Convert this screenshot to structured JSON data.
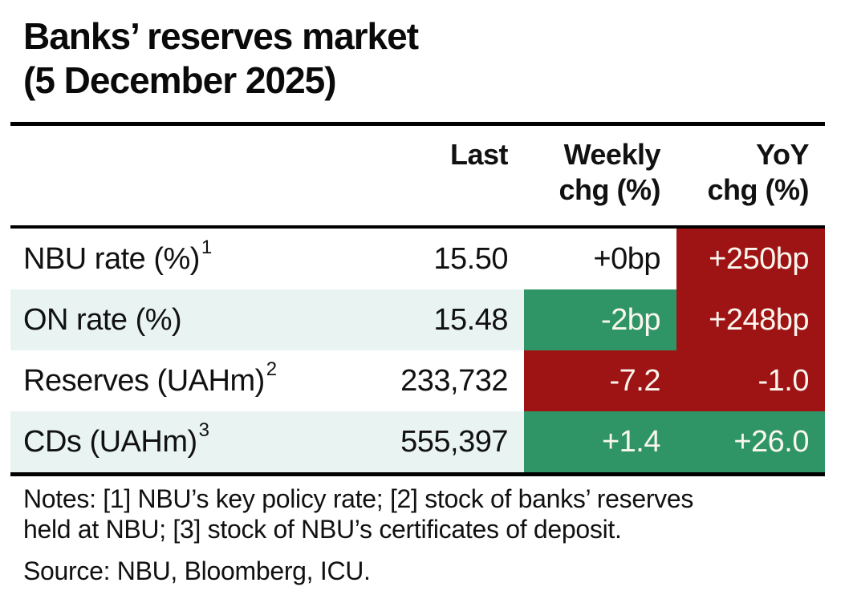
{
  "title": {
    "line1": "Banks’ reserves market",
    "line2": "(5 December 2025)"
  },
  "header": {
    "last": "Last",
    "weekly": [
      "Weekly",
      "chg (%)"
    ],
    "yoy": [
      "YoY",
      "chg (%)"
    ]
  },
  "chart_data": {
    "type": "table",
    "title": "Banks’ reserves market (5 December 2025)",
    "columns": [
      "Last",
      "Weekly chg (%)",
      "YoY chg (%)"
    ],
    "rows": [
      {
        "label": "NBU rate (%)",
        "footnote": "1",
        "last": "15.50",
        "weekly": "+0bp",
        "weekly_color": "none",
        "yoy": "+250bp",
        "yoy_color": "red",
        "row_shade": "white"
      },
      {
        "label": "ON rate (%)",
        "footnote": "",
        "last": "15.48",
        "weekly": "-2bp",
        "weekly_color": "green",
        "yoy": "+248bp",
        "yoy_color": "red",
        "row_shade": "alt"
      },
      {
        "label": "Reserves (UAHm)",
        "footnote": "2",
        "last": "233,732",
        "weekly": "-7.2",
        "weekly_color": "red",
        "yoy": "-1.0",
        "yoy_color": "red",
        "row_shade": "white"
      },
      {
        "label": "CDs (UAHm)",
        "footnote": "3",
        "last": "555,397",
        "weekly": "+1.4",
        "weekly_color": "green",
        "yoy": "+26.0",
        "yoy_color": "green",
        "row_shade": "alt"
      }
    ]
  },
  "notes": {
    "line1": "Notes: [1] NBU’s key policy rate; [2] stock of banks’ reserves",
    "line2": "held at NBU; [3] stock of NBU’s certificates of deposit."
  },
  "source": "Source: NBU, Bloomberg, ICU.",
  "colors": {
    "negative": "#9e1414",
    "positive": "#2f9566",
    "row_shade": "#e9f4f2",
    "text": "#111111",
    "cell_text_light": "#faf6ee"
  }
}
